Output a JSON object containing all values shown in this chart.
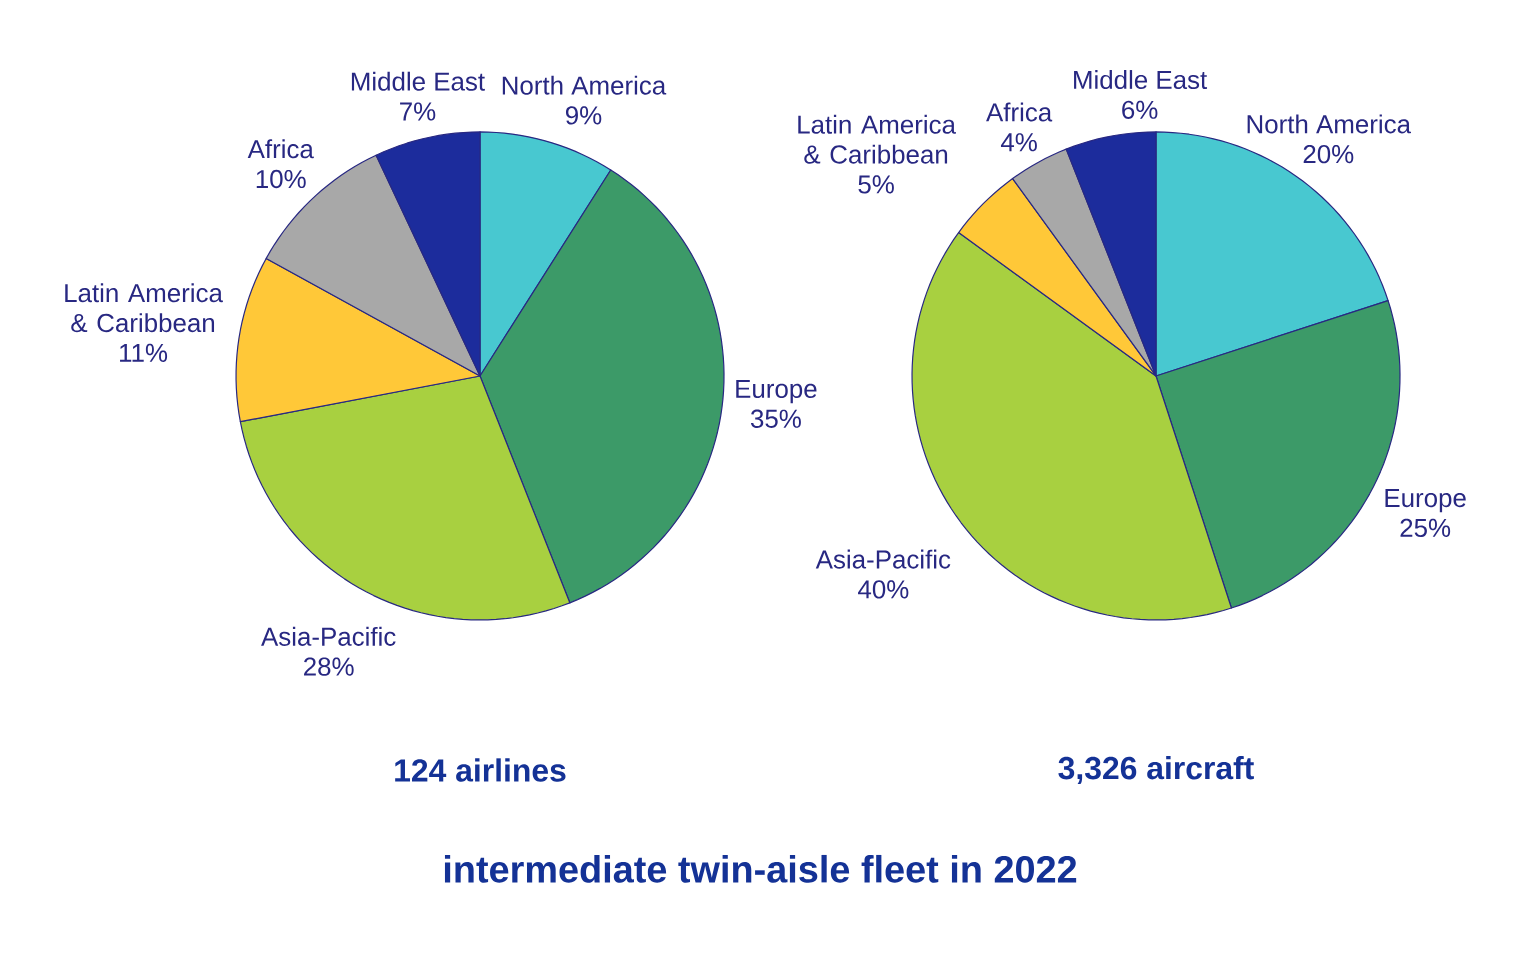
{
  "chart_data": [
    {
      "type": "pie",
      "title": "intermediate twin-aisle fleet in 2022",
      "xlabel": "124 airlines",
      "categories": [
        "North America",
        "Europe",
        "Asia-Pacific",
        "Latin America & Caribbean",
        "Africa",
        "Middle East"
      ],
      "values": [
        9,
        35,
        28,
        11,
        10,
        7
      ],
      "value_labels": [
        "9%",
        "35%",
        "28%",
        "11%",
        "10%",
        "7%"
      ],
      "colors": [
        "#48c8d0",
        "#3c9a68",
        "#a8d040",
        "#ffc838",
        "#a8a8a8",
        "#1c2c9c"
      ]
    },
    {
      "type": "pie",
      "xlabel": "3,326 aircraft",
      "categories": [
        "North America",
        "Europe",
        "Asia-Pacific",
        "Latin America & Caribbean",
        "Africa",
        "Middle East"
      ],
      "values": [
        20,
        25,
        40,
        5,
        4,
        6
      ],
      "value_labels": [
        "20%",
        "25%",
        "40%",
        "5%",
        "4%",
        "6%"
      ],
      "colors": [
        "#48c8d0",
        "#3c9a68",
        "#a8d040",
        "#ffc838",
        "#a8a8a8",
        "#1c2c9c"
      ]
    }
  ]
}
